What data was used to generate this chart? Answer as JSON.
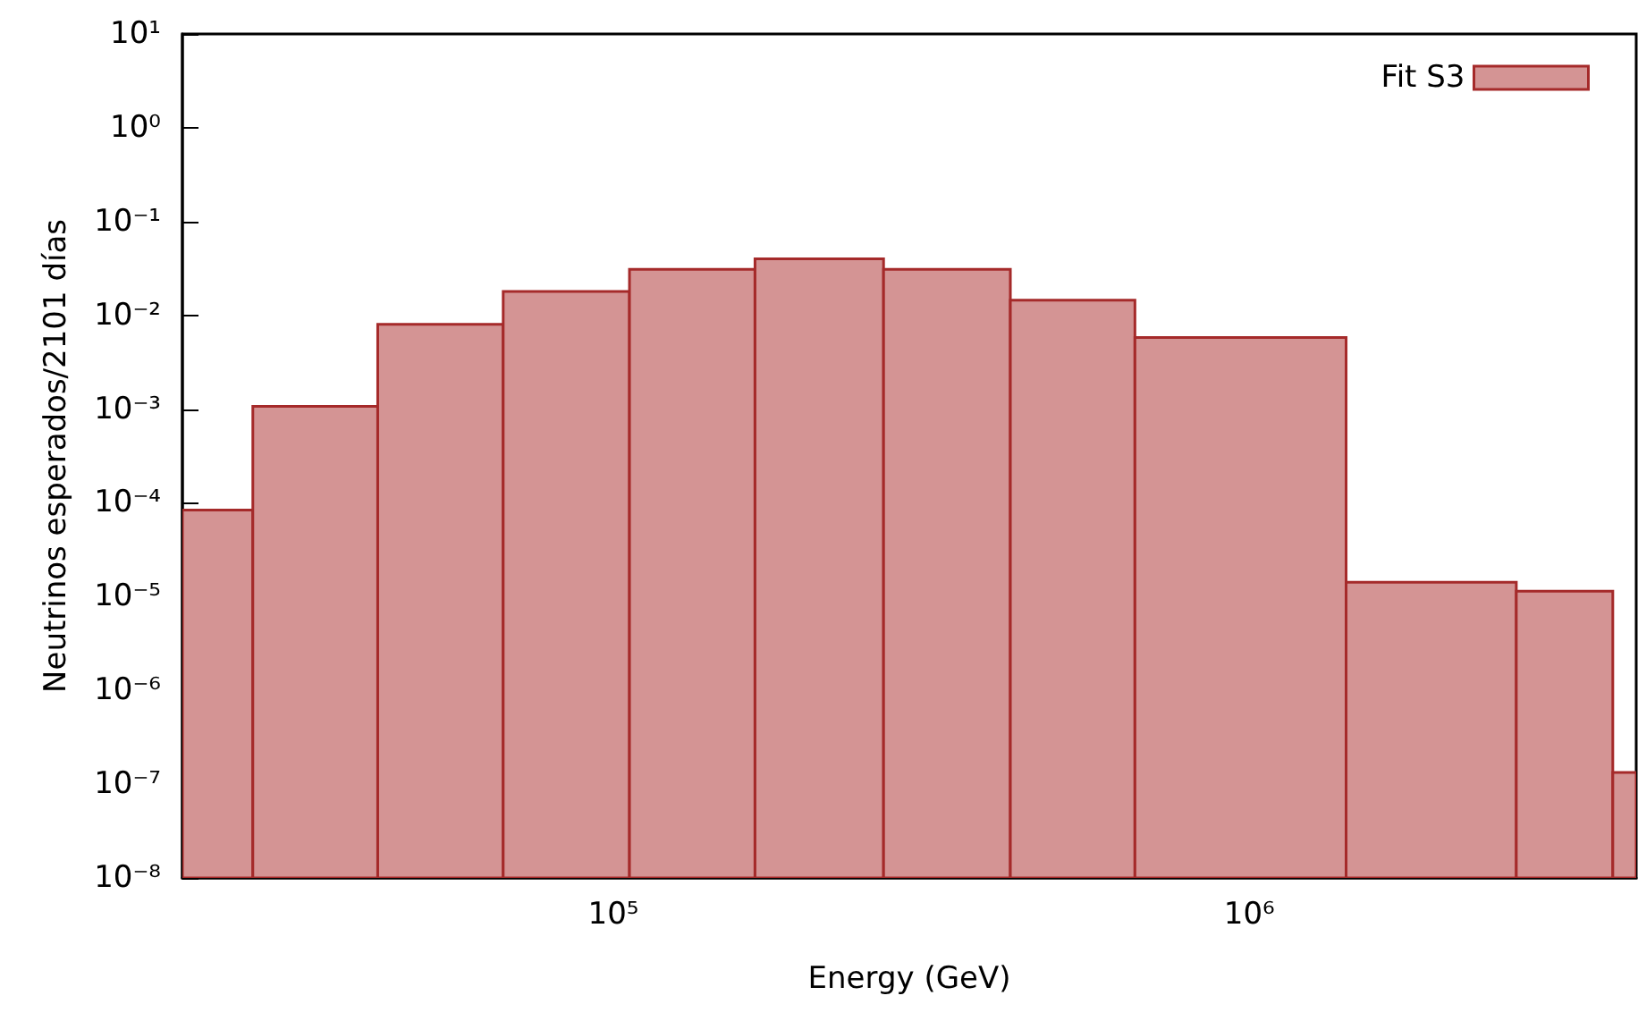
{
  "chart_data": {
    "type": "histogram",
    "xlabel": "Energy (GeV)",
    "ylabel": "Neutrinos esperados/2101 días",
    "bins": [
      21000,
      27100,
      42600,
      67100,
      106000,
      167000,
      266000,
      421000,
      661000,
      1420000,
      2630000,
      3730000,
      4060000
    ],
    "series": [
      {
        "name": "Fit S3",
        "color": "#d49494",
        "values": [
          8.4e-05,
          0.00107,
          0.008,
          0.018,
          0.031,
          0.04,
          0.031,
          0.0145,
          0.0058,
          1.42e-05,
          1.14e-05,
          1.33e-07
        ]
      }
    ],
    "log": "xy",
    "xlim": [
      21000,
      4060000
    ],
    "ylim": [
      1e-08,
      10
    ],
    "xticks": [
      {
        "value": 100000,
        "label": "10⁵"
      },
      {
        "value": 1000000,
        "label": "10⁶"
      }
    ],
    "yticks": [
      {
        "value": 1e-08,
        "label": "10⁻⁸"
      },
      {
        "value": 1e-07,
        "label": "10⁻⁷"
      },
      {
        "value": 1e-06,
        "label": "10⁻⁶"
      },
      {
        "value": 1e-05,
        "label": "10⁻⁵"
      },
      {
        "value": 0.0001,
        "label": "10⁻⁴"
      },
      {
        "value": 0.001,
        "label": "10⁻³"
      },
      {
        "value": 0.01,
        "label": "10⁻²"
      },
      {
        "value": 0.1,
        "label": "10⁻¹"
      },
      {
        "value": 1,
        "label": "10⁰"
      },
      {
        "value": 10,
        "label": "10¹"
      }
    ],
    "grid": false,
    "legend": "top right"
  }
}
